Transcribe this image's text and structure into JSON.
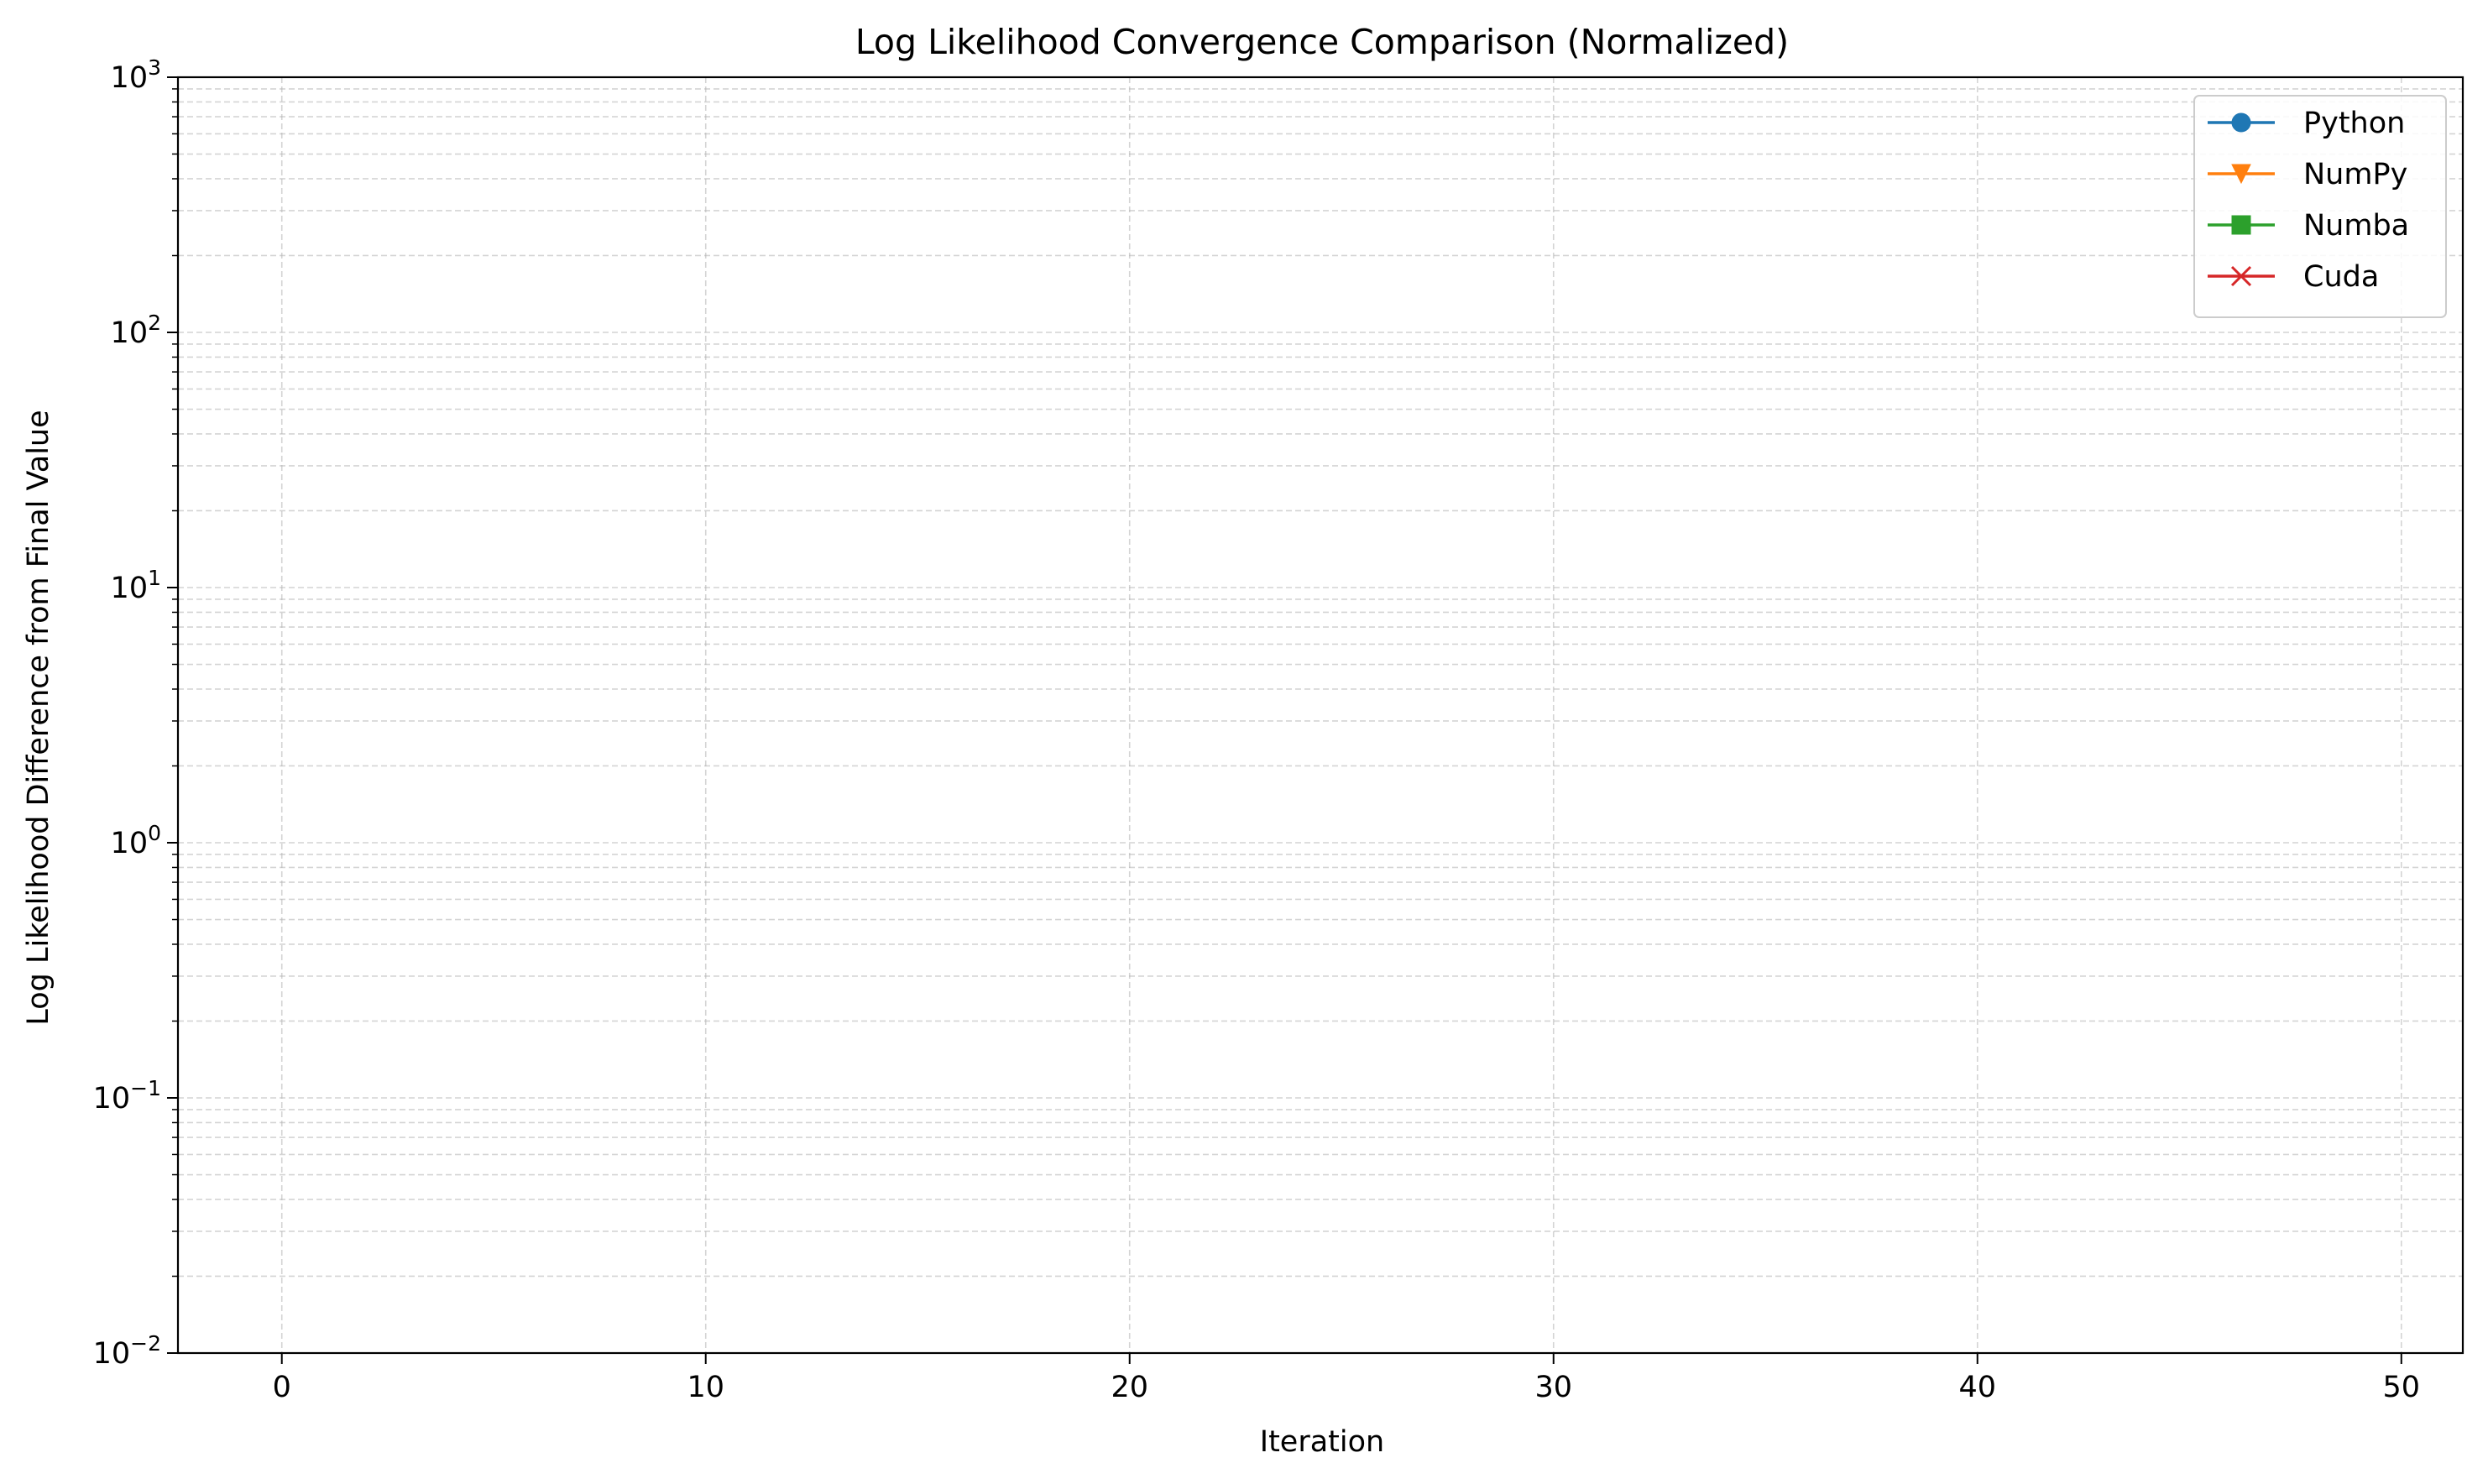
{
  "chart_data": {
    "type": "line",
    "title": "Log Likelihood Convergence Comparison (Normalized)",
    "xlabel": "Iteration",
    "ylabel": "Log Likelihood Difference from Final Value",
    "xlim": [
      -2.45,
      51.45
    ],
    "ylim": [
      0.01,
      1000
    ],
    "yscale": "log",
    "x_ticks": [
      0,
      10,
      20,
      30,
      40,
      50
    ],
    "y_ticks": [
      {
        "value": 0.01,
        "base": "10",
        "exp": "−2"
      },
      {
        "value": 0.1,
        "base": "10",
        "exp": "−1"
      },
      {
        "value": 1,
        "base": "10",
        "exp": "0"
      },
      {
        "value": 10,
        "base": "10",
        "exp": "1"
      },
      {
        "value": 100,
        "base": "10",
        "exp": "2"
      },
      {
        "value": 1000,
        "base": "10",
        "exp": "3"
      }
    ],
    "grid": true,
    "grid_style": "dashed",
    "legend_position": "top-right",
    "series": [
      {
        "name": "Python",
        "color": "#1f77b4",
        "marker": "circle",
        "x": [],
        "y": []
      },
      {
        "name": "NumPy",
        "color": "#ff7f0e",
        "marker": "triangle-down",
        "x": [],
        "y": []
      },
      {
        "name": "Numba",
        "color": "#2ca02c",
        "marker": "square",
        "x": [],
        "y": []
      },
      {
        "name": "Cuda",
        "color": "#d62728",
        "marker": "x",
        "x": [],
        "y": []
      }
    ]
  }
}
